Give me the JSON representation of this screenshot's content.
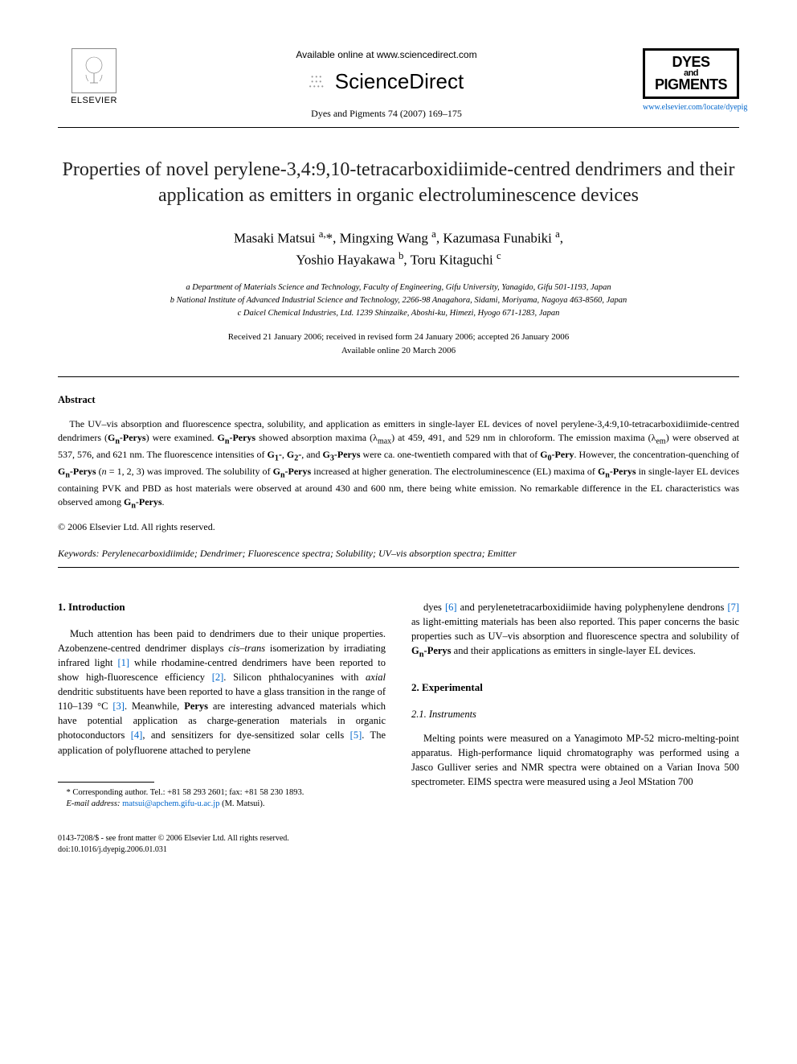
{
  "header": {
    "elsevier_label": "ELSEVIER",
    "available_text": "Available online at www.sciencedirect.com",
    "sciencedirect_label": "ScienceDirect",
    "journal_ref": "Dyes and Pigments 74 (2007) 169–175",
    "dyes_line1": "DYES",
    "dyes_and": "and",
    "dyes_line2": "PIGMENTS",
    "journal_url": "www.elsevier.com/locate/dyepig"
  },
  "title": "Properties of novel perylene-3,4:9,10-tetracarboxidiimide-centred dendrimers and their application as emitters in organic electroluminescence devices",
  "authors_line1_html": "Masaki Matsui <sup>a,</sup>*, Mingxing Wang <sup>a</sup>, Kazumasa Funabiki <sup>a</sup>,",
  "authors_line2_html": "Yoshio Hayakawa <sup>b</sup>, Toru Kitaguchi <sup>c</sup>",
  "affiliations": {
    "a": "a Department of Materials Science and Technology, Faculty of Engineering, Gifu University, Yanagido, Gifu 501-1193, Japan",
    "b": "b National Institute of Advanced Industrial Science and Technology, 2266-98 Anagahora, Sidami, Moriyama, Nagoya 463-8560, Japan",
    "c": "c Daicel Chemical Industries, Ltd. 1239 Shinzaike, Aboshi-ku, Himezi, Hyogo 671-1283, Japan"
  },
  "dates": {
    "received": "Received 21 January 2006; received in revised form 24 January 2006; accepted 26 January 2006",
    "online": "Available online 20 March 2006"
  },
  "abstract": {
    "heading": "Abstract",
    "body_html": "The UV–vis absorption and fluorescence spectra, solubility, and application as emitters in single-layer EL devices of novel perylene-3,4:9,10-tetracarboxidiimide-centred dendrimers (<b>G<sub>n</sub>-Perys</b>) were examined. <b>G<sub>n</sub>-Perys</b> showed absorption maxima (λ<sub>max</sub>) at 459, 491, and 529 nm in chloroform. The emission maxima (λ<sub>em</sub>) were observed at 537, 576, and 621 nm. The fluorescence intensities of <b>G<sub>1</sub>-</b>, <b>G<sub>2</sub>-</b>, and <b>G<sub>3</sub>-Perys</b> were ca. one-twentieth compared with that of <b>G<sub>0</sub>-Pery</b>. However, the concentration-quenching of <b>G<sub>n</sub>-Perys</b> (<i>n</i> = 1, 2, 3) was improved. The solubility of <b>G<sub>n</sub>-Perys</b> increased at higher generation. The electroluminescence (EL) maxima of <b>G<sub>n</sub>-Perys</b> in single-layer EL devices containing PVK and PBD as host materials were observed at around 430 and 600 nm, there being white emission. No remarkable difference in the EL characteristics was observed among <b>G<sub>n</sub>-Perys</b>.",
    "copyright": "© 2006 Elsevier Ltd. All rights reserved."
  },
  "keywords": {
    "label": "Keywords:",
    "text": " Perylenecarboxidiimide; Dendrimer; Fluorescence spectra; Solubility; UV–vis absorption spectra; Emitter"
  },
  "sections": {
    "intro_heading": "1. Introduction",
    "intro_html": "Much attention has been paid to dendrimers due to their unique properties. Azobenzene-centred dendrimer displays <i>cis–trans</i> isomerization by irradiating infrared light <span class=\"ref-link\">[1]</span> while rhodamine-centred dendrimers have been reported to show high-fluorescence efficiency <span class=\"ref-link\">[2]</span>. Silicon phthalocyanines with <i>axial</i> dendritic substituents have been reported to have a glass transition in the range of 110–139 °C <span class=\"ref-link\">[3]</span>. Meanwhile, <b>Perys</b> are interesting advanced materials which have potential application as charge-generation materials in organic photoconductors <span class=\"ref-link\">[4]</span>, and sensitizers for dye-sensitized solar cells <span class=\"ref-link\">[5]</span>. The application of polyfluorene attached to perylene",
    "intro_cont_html": "dyes <span class=\"ref-link\">[6]</span> and perylenetetracarboxidiimide having polyphenylene dendrons <span class=\"ref-link\">[7]</span> as light-emitting materials has been also reported. This paper concerns the basic properties such as UV–vis absorption and fluorescence spectra and solubility of <b>G<sub>n</sub>-Perys</b> and their applications as emitters in single-layer EL devices.",
    "exp_heading": "2. Experimental",
    "instruments_heading": "2.1. Instruments",
    "instruments_html": "Melting points were measured on a Yanagimoto MP-52 micro-melting-point apparatus. High-performance liquid chromatography was performed using a Jasco Gulliver series and NMR spectra were obtained on a Varian Inova 500 spectrometer. EIMS spectra were measured using a Jeol MStation 700"
  },
  "footnote": {
    "corresponding": "* Corresponding author. Tel.: +81 58 293 2601; fax: +81 58 230 1893.",
    "email_label": "E-mail address:",
    "email": "matsui@apchem.gifu-u.ac.jp",
    "email_person": " (M. Matsui)."
  },
  "footer": {
    "issn": "0143-7208/$ - see front matter © 2006 Elsevier Ltd. All rights reserved.",
    "doi": "doi:10.1016/j.dyepig.2006.01.031"
  }
}
